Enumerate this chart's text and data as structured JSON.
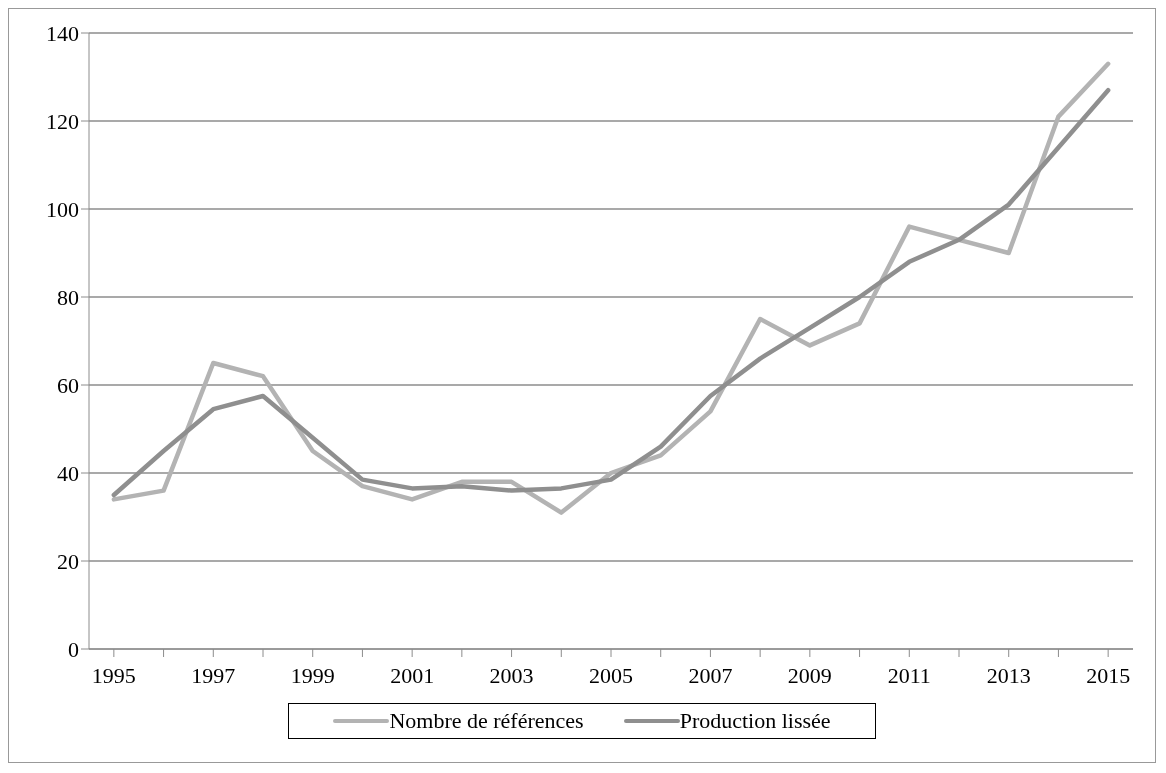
{
  "chart_data": {
    "type": "line",
    "categories": [
      "1995",
      null,
      "1997",
      null,
      "1999",
      null,
      "2001",
      null,
      "2003",
      null,
      "2005",
      null,
      "2007",
      null,
      "2009",
      null,
      "2011",
      null,
      "2013",
      null,
      "2015"
    ],
    "series": [
      {
        "name": "Nombre de références",
        "color": "#b3b3b3",
        "values": [
          34,
          36,
          65,
          62,
          45,
          37,
          34,
          38,
          38,
          31,
          40,
          44,
          54,
          75,
          69,
          74,
          96,
          93,
          90,
          121,
          133
        ]
      },
      {
        "name": "Production lissée",
        "color": "#8f8f8f",
        "values": [
          35,
          45,
          54.5,
          57.5,
          48,
          38.5,
          36.5,
          37,
          36,
          36.5,
          38.5,
          46,
          57.5,
          66,
          73,
          80,
          88,
          93,
          101,
          114,
          127
        ]
      }
    ],
    "ylim": [
      0,
      140
    ],
    "yticks": [
      0,
      20,
      40,
      60,
      80,
      100,
      120,
      140
    ],
    "grid": "y",
    "legend": "bottom",
    "marker": "none",
    "line_style": "solid"
  }
}
